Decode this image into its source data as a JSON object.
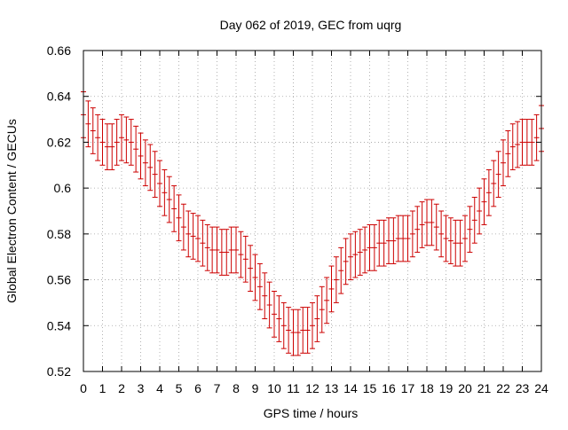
{
  "chart_data": {
    "type": "line",
    "title": "Day 062 of 2019, GEC from uqrg",
    "xlabel": "GPS time / hours",
    "ylabel": "Global Electron Content / GECUs",
    "xlim": [
      0,
      24
    ],
    "ylim": [
      0.52,
      0.66
    ],
    "x_ticks": [
      0,
      1,
      2,
      3,
      4,
      5,
      6,
      7,
      8,
      9,
      10,
      11,
      12,
      13,
      14,
      15,
      16,
      17,
      18,
      19,
      20,
      21,
      22,
      23,
      24
    ],
    "y_ticks": [
      0.52,
      0.54,
      0.56,
      0.58,
      0.6,
      0.62,
      0.64,
      0.66
    ],
    "y_tick_labels": [
      "0.52",
      "0.54",
      "0.56",
      "0.58",
      "0.6",
      "0.62",
      "0.64",
      "0.66"
    ],
    "grid": true,
    "series": [
      {
        "name": "GEC",
        "color": "#cc0000",
        "error": 0.01,
        "x": [
          0,
          0.25,
          0.5,
          0.75,
          1,
          1.25,
          1.5,
          1.75,
          2,
          2.25,
          2.5,
          2.75,
          3,
          3.25,
          3.5,
          3.75,
          4,
          4.25,
          4.5,
          4.75,
          5,
          5.25,
          5.5,
          5.75,
          6,
          6.25,
          6.5,
          6.75,
          7,
          7.25,
          7.5,
          7.75,
          8,
          8.25,
          8.5,
          8.75,
          9,
          9.25,
          9.5,
          9.75,
          10,
          10.25,
          10.5,
          10.75,
          11,
          11.25,
          11.5,
          11.75,
          12,
          12.25,
          12.5,
          12.75,
          13,
          13.25,
          13.5,
          13.75,
          14,
          14.25,
          14.5,
          14.75,
          15,
          15.25,
          15.5,
          15.75,
          16,
          16.25,
          16.5,
          16.75,
          17,
          17.25,
          17.5,
          17.75,
          18,
          18.25,
          18.5,
          18.75,
          19,
          19.25,
          19.5,
          19.75,
          20,
          20.25,
          20.5,
          20.75,
          21,
          21.25,
          21.5,
          21.75,
          22,
          22.25,
          22.5,
          22.75,
          23,
          23.25,
          23.5,
          23.75,
          24
        ],
        "y": [
          0.632,
          0.628,
          0.625,
          0.622,
          0.62,
          0.618,
          0.618,
          0.62,
          0.622,
          0.621,
          0.62,
          0.617,
          0.614,
          0.611,
          0.609,
          0.606,
          0.602,
          0.598,
          0.595,
          0.591,
          0.587,
          0.583,
          0.58,
          0.579,
          0.578,
          0.576,
          0.574,
          0.573,
          0.573,
          0.572,
          0.572,
          0.573,
          0.573,
          0.571,
          0.569,
          0.565,
          0.561,
          0.557,
          0.553,
          0.549,
          0.545,
          0.543,
          0.54,
          0.538,
          0.537,
          0.537,
          0.538,
          0.538,
          0.54,
          0.543,
          0.547,
          0.551,
          0.556,
          0.56,
          0.564,
          0.568,
          0.57,
          0.571,
          0.572,
          0.573,
          0.574,
          0.574,
          0.576,
          0.576,
          0.577,
          0.577,
          0.578,
          0.578,
          0.578,
          0.58,
          0.582,
          0.584,
          0.585,
          0.585,
          0.583,
          0.58,
          0.578,
          0.577,
          0.576,
          0.576,
          0.578,
          0.582,
          0.586,
          0.59,
          0.594,
          0.598,
          0.602,
          0.606,
          0.611,
          0.615,
          0.618,
          0.619,
          0.62,
          0.62,
          0.62,
          0.622,
          0.626
        ]
      }
    ]
  }
}
